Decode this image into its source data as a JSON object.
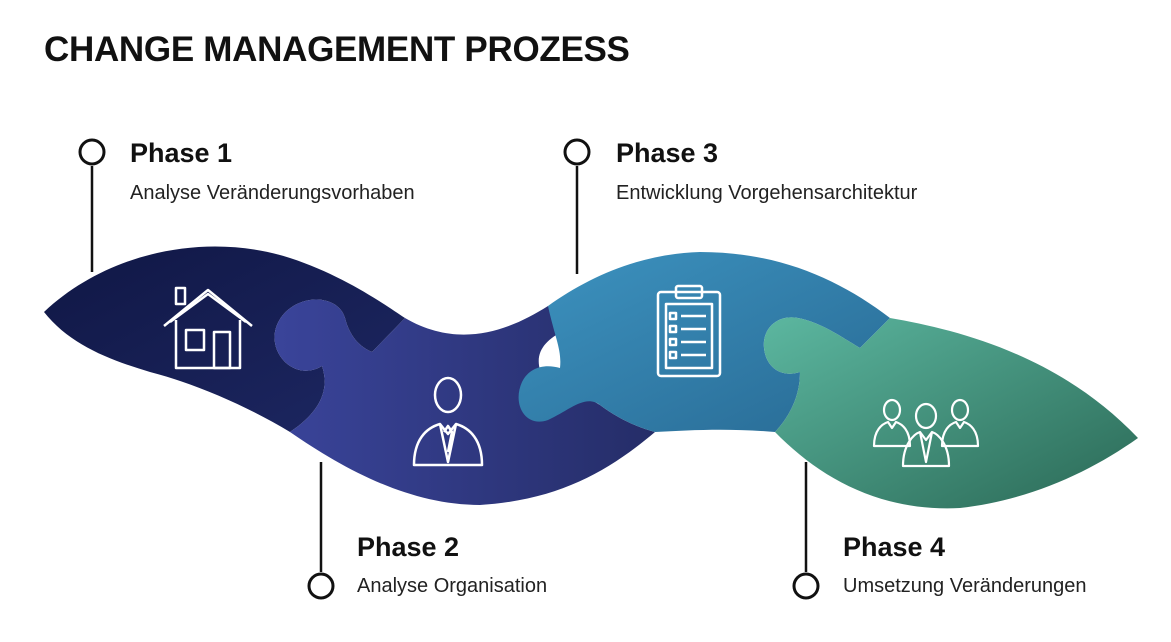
{
  "title": "CHANGE MANAGEMENT PROZESS",
  "phases": [
    {
      "title": "Phase 1",
      "description": "Analyse Veränderungsvorhaben",
      "icon": "house-icon",
      "color_from": "#141b4a",
      "color_to": "#1f2a66"
    },
    {
      "title": "Phase 2",
      "description": "Analyse Organisation",
      "icon": "businessman-icon",
      "color_from": "#2a3270",
      "color_to": "#3f4ba2"
    },
    {
      "title": "Phase 3",
      "description": "Entwicklung Vorgehensarchitektur",
      "icon": "clipboard-icon",
      "color_from": "#2a6f9c",
      "color_to": "#3d8fb8"
    },
    {
      "title": "Phase 4",
      "description": "Umsetzung Veränderungen",
      "icon": "team-icon",
      "color_from": "#3c9b88",
      "color_to": "#2d6f5c"
    }
  ],
  "colors": {
    "marker": "#111111",
    "icon_stroke": "#ffffff"
  }
}
